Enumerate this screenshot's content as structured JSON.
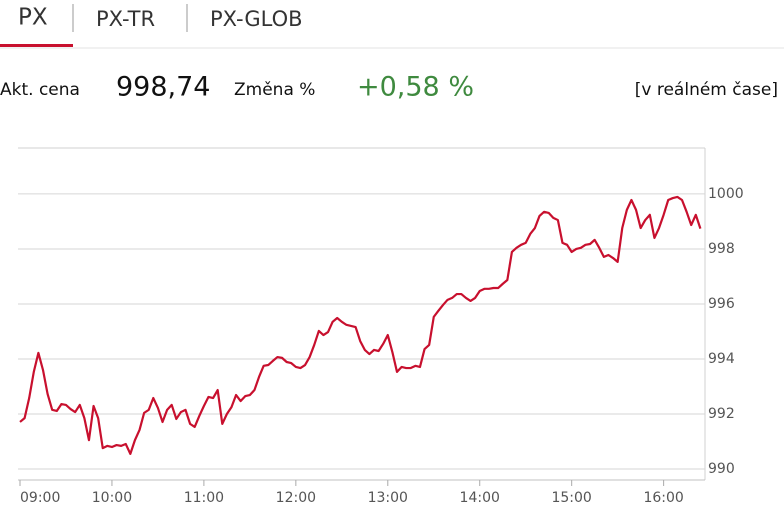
{
  "tabs": [
    "PX",
    "PX-TR",
    "PX-GLOB"
  ],
  "quote": {
    "price_label": "Akt. cena",
    "price": "998,74",
    "change_label": "Změna %",
    "change": "+0,58 %",
    "status": "[v reálném čase]"
  },
  "chart_data": {
    "type": "line",
    "x": [
      9,
      9.05,
      9.1,
      9.15,
      9.2,
      9.25,
      9.3,
      9.35,
      9.4,
      9.45,
      9.5,
      9.55,
      9.6,
      9.65,
      9.7,
      9.75,
      9.8,
      9.85,
      9.9,
      9.95,
      10,
      10.05,
      10.1,
      10.15,
      10.2,
      10.25,
      10.3,
      10.35,
      10.4,
      10.45,
      10.5,
      10.55,
      10.6,
      10.65,
      10.7,
      10.75,
      10.8,
      10.85,
      10.9,
      10.95,
      11,
      11.05,
      11.1,
      11.15,
      11.2,
      11.25,
      11.3,
      11.35,
      11.4,
      11.45,
      11.5,
      11.55,
      11.6,
      11.65,
      11.7,
      11.75,
      11.8,
      11.85,
      11.9,
      11.95,
      12,
      12.05,
      12.1,
      12.15,
      12.2,
      12.25,
      12.3,
      12.35,
      12.4,
      12.45,
      12.5,
      12.55,
      12.6,
      12.65,
      12.7,
      12.75,
      12.8,
      12.85,
      12.9,
      12.95,
      13,
      13.05,
      13.1,
      13.15,
      13.2,
      13.25,
      13.3,
      13.35,
      13.4,
      13.45,
      13.5,
      13.55,
      13.6,
      13.65,
      13.7,
      13.75,
      13.8,
      13.85,
      13.9,
      13.95,
      14,
      14.05,
      14.1,
      14.15,
      14.2,
      14.25,
      14.3,
      14.35,
      14.4,
      14.45,
      14.5,
      14.55,
      14.6,
      14.65,
      14.7,
      14.75,
      14.8,
      14.85,
      14.9,
      14.95,
      15,
      15.05,
      15.1,
      15.15,
      15.2,
      15.25,
      15.3,
      15.35,
      15.4,
      15.45,
      15.5,
      15.55,
      15.6,
      15.65,
      15.7,
      15.75,
      15.8,
      15.85,
      15.9,
      15.95,
      16,
      16.05,
      16.1,
      16.15,
      16.2,
      16.25,
      16.3,
      16.35,
      16.4
    ],
    "series": [
      {
        "color": "#c8102e",
        "values": [
          991.71,
          991.85,
          992.58,
          993.53,
          994.22,
          993.6,
          992.73,
          992.15,
          992.11,
          992.36,
          992.33,
          992.18,
          992.07,
          992.33,
          991.85,
          991.05,
          992.29,
          991.85,
          990.76,
          990.84,
          990.8,
          990.87,
          990.84,
          990.91,
          990.55,
          991.05,
          991.42,
          992.04,
          992.15,
          992.58,
          992.22,
          991.71,
          992.15,
          992.33,
          991.82,
          992.07,
          992.15,
          991.64,
          991.53,
          991.93,
          992.29,
          992.62,
          992.58,
          992.87,
          991.64,
          992.0,
          992.25,
          992.69,
          992.47,
          992.65,
          992.69,
          992.87,
          993.35,
          993.75,
          993.78,
          993.93,
          994.07,
          994.04,
          993.89,
          993.85,
          993.71,
          993.67,
          993.78,
          994.07,
          994.51,
          995.02,
          994.87,
          994.98,
          995.35,
          995.49,
          995.35,
          995.24,
          995.2,
          995.16,
          994.65,
          994.33,
          994.18,
          994.33,
          994.29,
          994.55,
          994.87,
          994.25,
          993.53,
          993.71,
          993.67,
          993.67,
          993.75,
          993.71,
          994.36,
          994.51,
          995.53,
          995.75,
          995.96,
          996.15,
          996.22,
          996.36,
          996.36,
          996.22,
          996.11,
          996.22,
          996.47,
          996.55,
          996.55,
          996.58,
          996.58,
          996.73,
          996.87,
          997.89,
          998.04,
          998.15,
          998.22,
          998.55,
          998.76,
          999.2,
          999.35,
          999.31,
          999.13,
          999.05,
          998.22,
          998.15,
          997.89,
          998.0,
          998.04,
          998.15,
          998.18,
          998.33,
          998.04,
          997.71,
          997.78,
          997.67,
          997.53,
          998.76,
          999.42,
          999.78,
          999.42,
          998.76,
          999.05,
          999.24,
          998.4,
          998.76,
          999.24,
          999.78,
          999.85,
          999.89,
          999.78,
          999.35,
          998.87,
          999.24,
          998.74
        ]
      }
    ],
    "xlim": [
      9,
      16.45
    ],
    "xticks": [
      {
        "value": 9,
        "label": "09:00"
      },
      {
        "value": 10,
        "label": "10:00"
      },
      {
        "value": 11,
        "label": "11:00"
      },
      {
        "value": 12,
        "label": "12:00"
      },
      {
        "value": 13,
        "label": "13:00"
      },
      {
        "value": 14,
        "label": "14:00"
      },
      {
        "value": 15,
        "label": "15:00"
      },
      {
        "value": 16,
        "label": "16:00"
      }
    ],
    "ylim": [
      989.6,
      1001.67
    ],
    "yticks": [
      990,
      992,
      994,
      996,
      998,
      1000
    ],
    "grid": true
  }
}
